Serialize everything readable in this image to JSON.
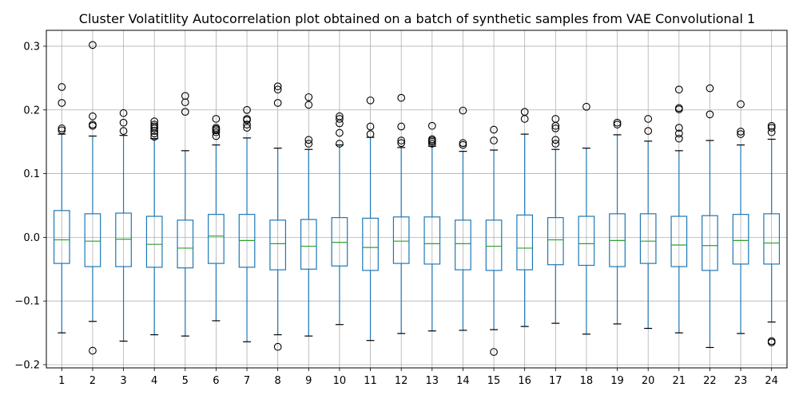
{
  "chart_data": {
    "type": "box",
    "title": "Cluster Volatitlity Autocorrelation plot obtained on a batch of synthetic samples from VAE Convolutional 1",
    "xlabel": "",
    "ylabel": "",
    "categories": [
      "1",
      "2",
      "3",
      "4",
      "5",
      "6",
      "7",
      "8",
      "9",
      "10",
      "11",
      "12",
      "13",
      "14",
      "15",
      "16",
      "17",
      "18",
      "19",
      "20",
      "21",
      "22",
      "23",
      "24"
    ],
    "ylim": [
      -0.205,
      0.325
    ],
    "yticks": [
      -0.2,
      -0.1,
      0.0,
      0.1,
      0.2,
      0.3
    ],
    "ytick_labels": [
      "−0.2",
      "−0.1",
      "0.0",
      "0.1",
      "0.2",
      "0.3"
    ],
    "grid": true,
    "colors": {
      "box": "#1f77b4",
      "median": "#2ca02c",
      "whisker": "#1f77b4",
      "cap": "#000000",
      "flier": "#000000",
      "grid": "#b0b0b0"
    },
    "boxes": [
      {
        "q1": -0.041,
        "median": -0.004,
        "q3": 0.042,
        "whislo": -0.15,
        "whishi": 0.162,
        "fliers": [
          0.168,
          0.171,
          0.211,
          0.236
        ]
      },
      {
        "q1": -0.046,
        "median": -0.006,
        "q3": 0.037,
        "whislo": -0.132,
        "whishi": 0.159,
        "fliers": [
          0.175,
          0.177,
          0.19,
          0.302,
          -0.178
        ]
      },
      {
        "q1": -0.046,
        "median": -0.003,
        "q3": 0.038,
        "whislo": -0.163,
        "whishi": 0.16,
        "fliers": [
          0.167,
          0.18,
          0.195
        ]
      },
      {
        "q1": -0.047,
        "median": -0.011,
        "q3": 0.033,
        "whislo": -0.153,
        "whishi": 0.155,
        "fliers": [
          0.158,
          0.163,
          0.167,
          0.171,
          0.174,
          0.177,
          0.182
        ]
      },
      {
        "q1": -0.048,
        "median": -0.017,
        "q3": 0.027,
        "whislo": -0.155,
        "whishi": 0.136,
        "fliers": [
          0.197,
          0.212,
          0.222
        ]
      },
      {
        "q1": -0.041,
        "median": 0.002,
        "q3": 0.036,
        "whislo": -0.131,
        "whishi": 0.145,
        "fliers": [
          0.159,
          0.165,
          0.168,
          0.17,
          0.172,
          0.186
        ]
      },
      {
        "q1": -0.047,
        "median": -0.005,
        "q3": 0.036,
        "whislo": -0.164,
        "whishi": 0.156,
        "fliers": [
          0.172,
          0.177,
          0.184,
          0.186,
          0.2
        ]
      },
      {
        "q1": -0.051,
        "median": -0.01,
        "q3": 0.027,
        "whislo": -0.153,
        "whishi": 0.14,
        "fliers": [
          0.211,
          0.232,
          0.237,
          -0.172
        ]
      },
      {
        "q1": -0.05,
        "median": -0.014,
        "q3": 0.028,
        "whislo": -0.155,
        "whishi": 0.138,
        "fliers": [
          0.147,
          0.153,
          0.208,
          0.22
        ]
      },
      {
        "q1": -0.045,
        "median": -0.008,
        "q3": 0.031,
        "whislo": -0.137,
        "whishi": 0.145,
        "fliers": [
          0.147,
          0.164,
          0.179,
          0.186,
          0.19
        ]
      },
      {
        "q1": -0.052,
        "median": -0.016,
        "q3": 0.03,
        "whislo": -0.162,
        "whishi": 0.157,
        "fliers": [
          0.162,
          0.174,
          0.215
        ]
      },
      {
        "q1": -0.041,
        "median": -0.006,
        "q3": 0.032,
        "whislo": -0.151,
        "whishi": 0.141,
        "fliers": [
          0.148,
          0.152,
          0.174,
          0.219
        ]
      },
      {
        "q1": -0.042,
        "median": -0.01,
        "q3": 0.032,
        "whislo": -0.147,
        "whishi": 0.143,
        "fliers": [
          0.147,
          0.15,
          0.152,
          0.154,
          0.175
        ]
      },
      {
        "q1": -0.051,
        "median": -0.01,
        "q3": 0.027,
        "whislo": -0.146,
        "whishi": 0.135,
        "fliers": [
          0.145,
          0.148,
          0.199
        ]
      },
      {
        "q1": -0.052,
        "median": -0.014,
        "q3": 0.027,
        "whislo": -0.145,
        "whishi": 0.137,
        "fliers": [
          0.152,
          0.169,
          -0.18
        ]
      },
      {
        "q1": -0.051,
        "median": -0.017,
        "q3": 0.035,
        "whislo": -0.14,
        "whishi": 0.162,
        "fliers": [
          0.186,
          0.197
        ]
      },
      {
        "q1": -0.043,
        "median": -0.004,
        "q3": 0.031,
        "whislo": -0.135,
        "whishi": 0.138,
        "fliers": [
          0.147,
          0.153,
          0.171,
          0.175,
          0.186
        ]
      },
      {
        "q1": -0.044,
        "median": -0.01,
        "q3": 0.033,
        "whislo": -0.152,
        "whishi": 0.14,
        "fliers": [
          0.205
        ]
      },
      {
        "q1": -0.046,
        "median": -0.005,
        "q3": 0.037,
        "whislo": -0.136,
        "whishi": 0.161,
        "fliers": [
          0.177,
          0.18
        ]
      },
      {
        "q1": -0.041,
        "median": -0.006,
        "q3": 0.037,
        "whislo": -0.143,
        "whishi": 0.151,
        "fliers": [
          0.167,
          0.186
        ]
      },
      {
        "q1": -0.046,
        "median": -0.012,
        "q3": 0.033,
        "whislo": -0.15,
        "whishi": 0.136,
        "fliers": [
          0.155,
          0.163,
          0.172,
          0.201,
          0.203,
          0.232
        ]
      },
      {
        "q1": -0.052,
        "median": -0.013,
        "q3": 0.034,
        "whislo": -0.173,
        "whishi": 0.152,
        "fliers": [
          0.193,
          0.234
        ]
      },
      {
        "q1": -0.042,
        "median": -0.005,
        "q3": 0.036,
        "whislo": -0.151,
        "whishi": 0.145,
        "fliers": [
          0.162,
          0.166,
          0.209
        ]
      },
      {
        "q1": -0.042,
        "median": -0.009,
        "q3": 0.037,
        "whislo": -0.133,
        "whishi": 0.154,
        "fliers": [
          0.165,
          0.172,
          0.175,
          -0.163,
          -0.165
        ]
      }
    ]
  }
}
